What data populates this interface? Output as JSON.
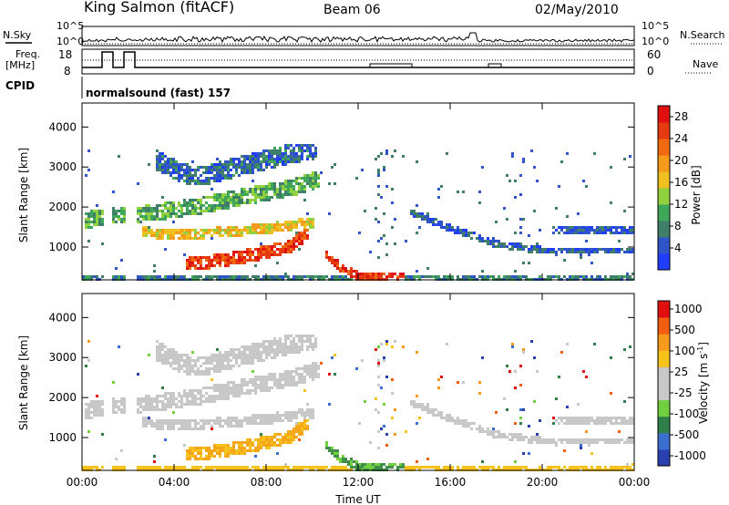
{
  "header": {
    "station": "King Salmon (fitACF)",
    "beam": "Beam 06",
    "date": "02/May/2010"
  },
  "strip_labels": {
    "nsky": "N.Sky",
    "nsearch": "N.Search",
    "freq_line1": "Freq.",
    "freq_line2": "[MHz]",
    "nave": "Nave",
    "cpid": "CPID",
    "cpid_value": "normalsound (fast) 157",
    "tick_1e5": "10^5",
    "tick_1e0": "10^0",
    "freq_ticks": [
      "18",
      "8"
    ],
    "nave_ticks": [
      "60",
      "0"
    ]
  },
  "colors": {
    "power_scale": [
      "#1f3cff",
      "#2f55c8",
      "#3f7f6a",
      "#3fa75a",
      "#8fd13f",
      "#f0c020",
      "#f59a1a",
      "#f26a10",
      "#e63a10",
      "#e01010"
    ],
    "velocity_scale": [
      "#2a3fb0",
      "#3a6fd0",
      "#2f7f4a",
      "#6fcf3f",
      "#c8c8c8",
      "#c8c8c8",
      "#f7c21a",
      "#f59a1a",
      "#f25d10",
      "#e01010"
    ],
    "ground_scatter": "#c8c8c8"
  },
  "chart_data": [
    {
      "type": "heatmap",
      "panel": "power",
      "xlabel": "",
      "ylabel": "Slant Range [km]",
      "xlim": [
        0,
        24
      ],
      "ylim": [
        180,
        4600
      ],
      "y_ticks": [
        "1000",
        "2000",
        "3000",
        "4000"
      ],
      "colorbar_label": "Power [dB]",
      "colorbar_ticks": [
        "4",
        "8",
        "12",
        "16",
        "20",
        "24",
        "28"
      ],
      "colorbar_range": [
        0,
        30
      ]
    },
    {
      "type": "heatmap",
      "panel": "velocity",
      "xlabel": "Time UT",
      "ylabel": "Slant Range [km]",
      "xlim": [
        0,
        24
      ],
      "ylim": [
        180,
        4600
      ],
      "x_ticks": [
        "00:00",
        "04:00",
        "08:00",
        "12:00",
        "16:00",
        "20:00",
        "00:00"
      ],
      "y_ticks": [
        "1000",
        "2000",
        "3000",
        "4000"
      ],
      "colorbar_label": "Velocity [m s",
      "colorbar_label_sup": "-1",
      "colorbar_label_end": "]",
      "colorbar_ticks": [
        "1000",
        "500",
        "100",
        "25",
        "-25",
        "-100",
        "-500",
        "-1000"
      ]
    }
  ]
}
